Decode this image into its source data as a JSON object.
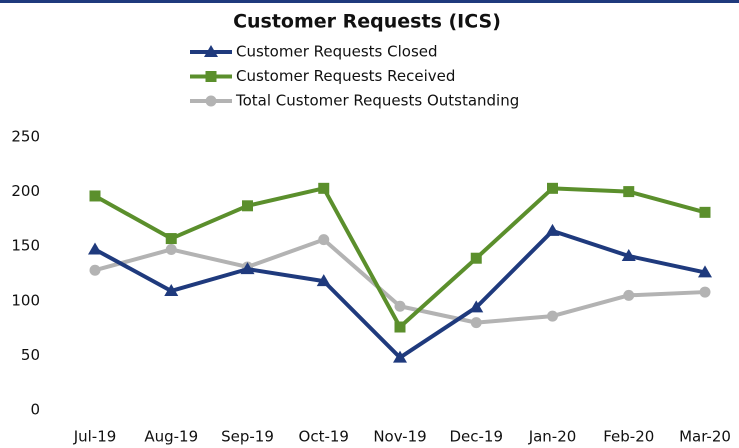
{
  "chart_data": {
    "type": "line",
    "title": "Customer Requests (ICS)",
    "categories": [
      "Jul-19",
      "Aug-19",
      "Sep-19",
      "Oct-19",
      "Nov-19",
      "Dec-19",
      "Jan-20",
      "Feb-20",
      "Mar-20"
    ],
    "series": [
      {
        "name": "Customer Requests Closed",
        "color": "#1f3a7d",
        "marker": "triangle",
        "values": [
          147,
          109,
          129,
          118,
          48,
          94,
          164,
          141,
          126
        ]
      },
      {
        "name": "Customer Requests Received",
        "color": "#5b8f2c",
        "marker": "square",
        "values": [
          196,
          157,
          187,
          203,
          76,
          139,
          203,
          200,
          181
        ]
      },
      {
        "name": "Total Customer Requests Outstanding",
        "color": "#b3b3b3",
        "marker": "circle",
        "values": [
          128,
          147,
          131,
          156,
          95,
          80,
          86,
          105,
          108
        ]
      }
    ],
    "ylim": [
      0,
      250
    ],
    "yticks": [
      0,
      50,
      100,
      150,
      200,
      250
    ],
    "grid": false,
    "legend": "top"
  }
}
